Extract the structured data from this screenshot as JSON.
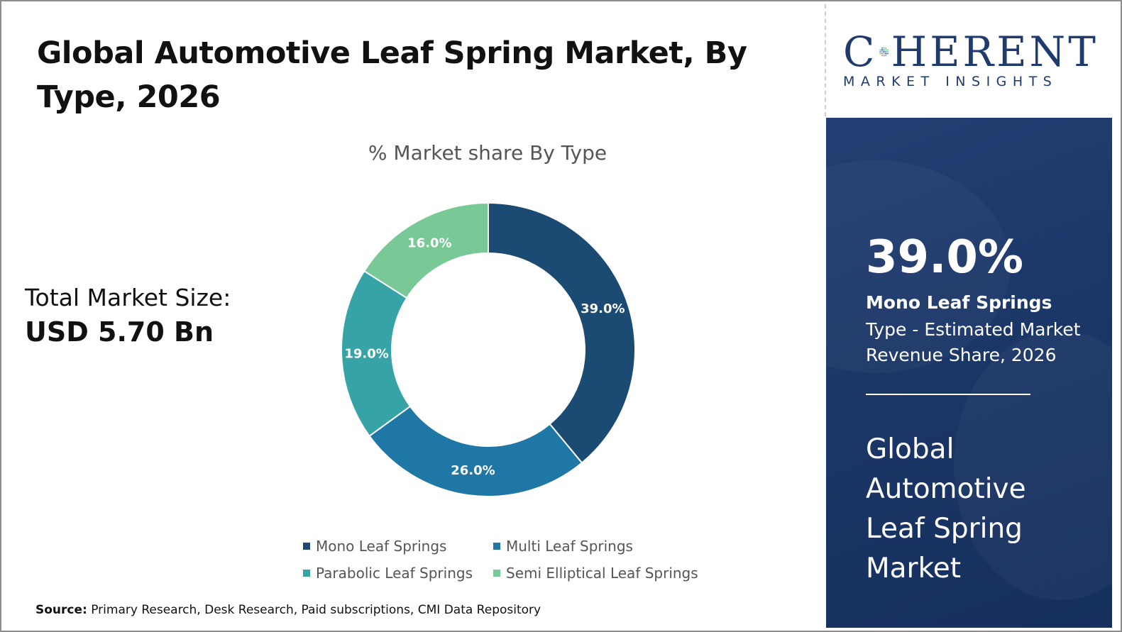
{
  "page": {
    "title": "Global Automotive Leaf Spring Market, By Type, 2026",
    "market_size_label": "Total Market Size:",
    "market_size_value": "USD 5.70 Bn",
    "source_label": "Source:",
    "source_text": " Primary Research, Desk Research, Paid subscriptions, CMI Data Repository"
  },
  "logo": {
    "main_before": "C",
    "main_after": "HERENT",
    "sub": "MARKET INSIGHTS",
    "icon": "dot-grid-logo-icon"
  },
  "panel": {
    "stat": "39.0%",
    "stat_label": "Mono Leaf Springs",
    "stat_desc": "Type - Estimated Market Revenue Share, 2026",
    "heading": "Global Automotive Leaf Spring Market"
  },
  "chart_data": {
    "type": "pie",
    "variant": "donut",
    "title": "% Market share By Type",
    "categories": [
      "Mono Leaf Springs",
      "Multi Leaf Springs",
      "Parabolic Leaf Springs",
      "Semi Elliptical Leaf Springs"
    ],
    "values": [
      39.0,
      26.0,
      19.0,
      16.0
    ],
    "labels": [
      "39.0%",
      "26.0%",
      "19.0%",
      "16.0%"
    ],
    "colors": [
      "#1b4a72",
      "#1f77a6",
      "#36a3a6",
      "#78c996"
    ],
    "start_angle": "12 o'clock, clockwise",
    "legend_position": "bottom"
  }
}
